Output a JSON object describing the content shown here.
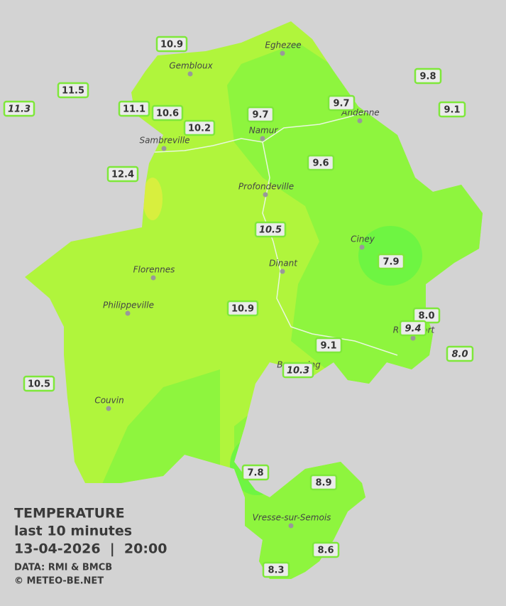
{
  "map": {
    "legend": {
      "title": "TEMPERATURE",
      "subtitle": "last 10 minutes",
      "datetime": "13-04-2026  |  20:00",
      "source": "DATA: RMI & BMCB",
      "copyright": "© METEO-BE.NET"
    },
    "towns": [
      "Eghezee",
      "Gembloux",
      "Andenne",
      "Namur",
      "Sambreville",
      "Profondeville",
      "Ciney",
      "Dinant",
      "Florennes",
      "Philippeville",
      "Rochefort",
      "Beauraing",
      "Couvin",
      "Vresse-sur-Semois"
    ],
    "stations": [
      {
        "label": "10.9",
        "italic": false
      },
      {
        "label": "11.5",
        "italic": false
      },
      {
        "label": "11.3",
        "italic": true
      },
      {
        "label": "11.1",
        "italic": false
      },
      {
        "label": "10.6",
        "italic": false
      },
      {
        "label": "10.2",
        "italic": false
      },
      {
        "label": "9.7",
        "italic": false
      },
      {
        "label": "9.7",
        "italic": false
      },
      {
        "label": "9.8",
        "italic": false
      },
      {
        "label": "9.1",
        "italic": false
      },
      {
        "label": "9.6",
        "italic": false
      },
      {
        "label": "12.4",
        "italic": false
      },
      {
        "label": "10.5",
        "italic": true
      },
      {
        "label": "7.9",
        "italic": false
      },
      {
        "label": "10.9",
        "italic": false
      },
      {
        "label": "8.0",
        "italic": false
      },
      {
        "label": "9.4",
        "italic": true
      },
      {
        "label": "9.1",
        "italic": false
      },
      {
        "label": "8.0",
        "italic": true
      },
      {
        "label": "10.3",
        "italic": true
      },
      {
        "label": "10.5",
        "italic": false
      },
      {
        "label": "7.8",
        "italic": false
      },
      {
        "label": "8.9",
        "italic": false
      },
      {
        "label": "8.6",
        "italic": false
      },
      {
        "label": "8.3",
        "italic": false
      }
    ]
  }
}
